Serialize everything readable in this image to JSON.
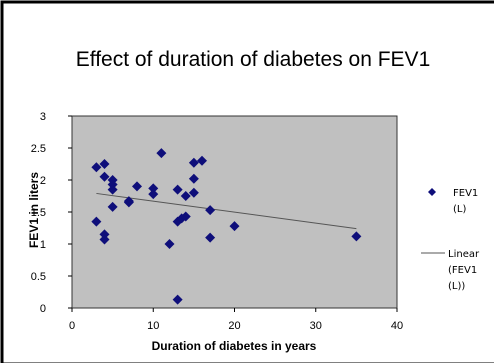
{
  "chart_data": {
    "type": "scatter",
    "title": "Effect of duration of diabetes on FEV1",
    "xlabel": "Duration of diabetes in years",
    "ylabel": "FEV1 in liters",
    "xlim": [
      0,
      40
    ],
    "ylim": [
      0,
      3
    ],
    "x_ticks": [
      "0",
      "10",
      "20",
      "30",
      "40"
    ],
    "y_ticks": [
      "0",
      "0.5",
      "1",
      "1.5",
      "2",
      "2.5",
      "3"
    ],
    "grid": false,
    "legend_position": "right",
    "colors": {
      "plot_background": "#c0c0c0",
      "marker": "#0e0e7a",
      "trendline": "#555555"
    },
    "series": [
      {
        "name": "FEV1 (L)",
        "legend_lines": [
          "FEV1",
          "(L)"
        ],
        "marker": "diamond",
        "points": [
          {
            "x": 3,
            "y": 2.2
          },
          {
            "x": 4,
            "y": 2.25
          },
          {
            "x": 4,
            "y": 2.05
          },
          {
            "x": 3,
            "y": 1.35
          },
          {
            "x": 4,
            "y": 1.15
          },
          {
            "x": 4,
            "y": 1.07
          },
          {
            "x": 5,
            "y": 2.0
          },
          {
            "x": 5,
            "y": 1.93
          },
          {
            "x": 5,
            "y": 1.85
          },
          {
            "x": 5,
            "y": 1.58
          },
          {
            "x": 7,
            "y": 1.67
          },
          {
            "x": 7,
            "y": 1.65
          },
          {
            "x": 8,
            "y": 1.9
          },
          {
            "x": 10,
            "y": 1.87
          },
          {
            "x": 10,
            "y": 1.78
          },
          {
            "x": 11,
            "y": 2.42
          },
          {
            "x": 12,
            "y": 1.0
          },
          {
            "x": 13,
            "y": 1.85
          },
          {
            "x": 13,
            "y": 1.35
          },
          {
            "x": 13,
            "y": 0.13
          },
          {
            "x": 13.5,
            "y": 1.4
          },
          {
            "x": 14,
            "y": 1.75
          },
          {
            "x": 14,
            "y": 1.43
          },
          {
            "x": 15,
            "y": 2.27
          },
          {
            "x": 15,
            "y": 2.02
          },
          {
            "x": 15,
            "y": 1.8
          },
          {
            "x": 16,
            "y": 2.3
          },
          {
            "x": 17,
            "y": 1.53
          },
          {
            "x": 17,
            "y": 1.1
          },
          {
            "x": 20,
            "y": 1.28
          },
          {
            "x": 35,
            "y": 1.12
          }
        ]
      },
      {
        "name": "Linear (FEV1 (L))",
        "legend_lines": [
          "Linear",
          "(FEV1",
          "(L))"
        ],
        "type": "trendline",
        "x": [
          3,
          35
        ],
        "y": [
          1.79,
          1.24
        ]
      }
    ]
  }
}
